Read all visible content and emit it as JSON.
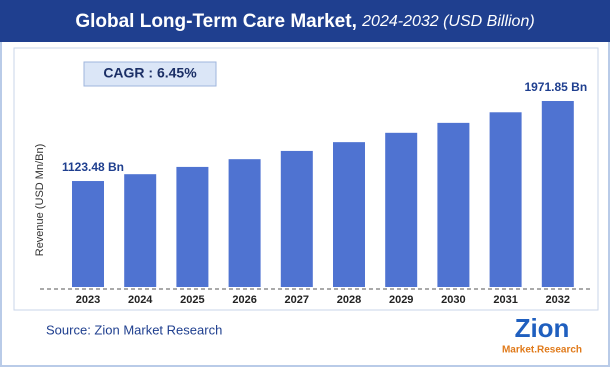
{
  "chart_data": {
    "type": "bar",
    "title": "Global Long-Term Care Market,",
    "subtitle": "2024-2032 (USD Billion)",
    "annotation": "CAGR : 6.45%",
    "ylabel": "Revenue (USD Mn/Bn)",
    "source": "Source: Zion Market Research",
    "logo": {
      "name": "Zion",
      "tagline": "Market.Research"
    },
    "categories": [
      "2023",
      "2024",
      "2025",
      "2026",
      "2027",
      "2028",
      "2029",
      "2030",
      "2031",
      "2032"
    ],
    "values": [
      1123.48,
      1195.9,
      1273.0,
      1355.1,
      1442.5,
      1535.6,
      1634.6,
      1740.0,
      1852.3,
      1971.85
    ],
    "value_labels": [
      "1123.48 Bn",
      null,
      null,
      null,
      null,
      null,
      null,
      null,
      null,
      "1971.85 Bn"
    ],
    "color": "#4f73d1"
  }
}
